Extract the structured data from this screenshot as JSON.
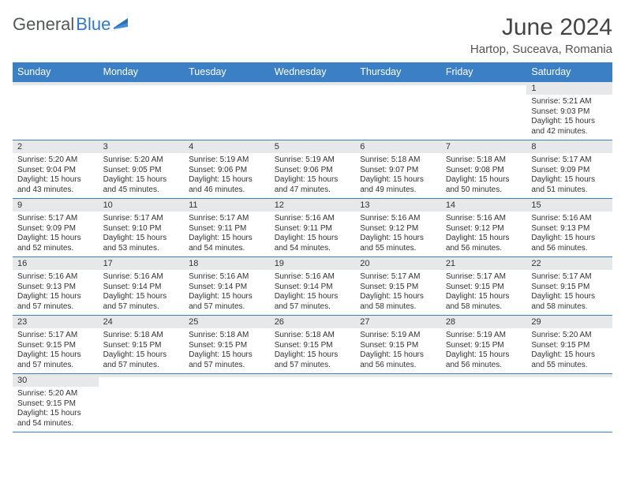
{
  "logo": {
    "part1": "General",
    "part2": "Blue"
  },
  "title": "June 2024",
  "location": "Hartop, Suceava, Romania",
  "colors": {
    "header_bg": "#3b7fc4",
    "header_text": "#ffffff",
    "daynum_bg": "#e7e8e9",
    "border": "#3b7fc4",
    "logo_gray": "#55585a",
    "logo_blue": "#3478c2"
  },
  "weekdays": [
    "Sunday",
    "Monday",
    "Tuesday",
    "Wednesday",
    "Thursday",
    "Friday",
    "Saturday"
  ],
  "weeks": [
    [
      {
        "n": "",
        "sr": "",
        "ss": "",
        "dl": ""
      },
      {
        "n": "",
        "sr": "",
        "ss": "",
        "dl": ""
      },
      {
        "n": "",
        "sr": "",
        "ss": "",
        "dl": ""
      },
      {
        "n": "",
        "sr": "",
        "ss": "",
        "dl": ""
      },
      {
        "n": "",
        "sr": "",
        "ss": "",
        "dl": ""
      },
      {
        "n": "",
        "sr": "",
        "ss": "",
        "dl": ""
      },
      {
        "n": "1",
        "sr": "Sunrise: 5:21 AM",
        "ss": "Sunset: 9:03 PM",
        "dl": "Daylight: 15 hours and 42 minutes."
      }
    ],
    [
      {
        "n": "2",
        "sr": "Sunrise: 5:20 AM",
        "ss": "Sunset: 9:04 PM",
        "dl": "Daylight: 15 hours and 43 minutes."
      },
      {
        "n": "3",
        "sr": "Sunrise: 5:20 AM",
        "ss": "Sunset: 9:05 PM",
        "dl": "Daylight: 15 hours and 45 minutes."
      },
      {
        "n": "4",
        "sr": "Sunrise: 5:19 AM",
        "ss": "Sunset: 9:06 PM",
        "dl": "Daylight: 15 hours and 46 minutes."
      },
      {
        "n": "5",
        "sr": "Sunrise: 5:19 AM",
        "ss": "Sunset: 9:06 PM",
        "dl": "Daylight: 15 hours and 47 minutes."
      },
      {
        "n": "6",
        "sr": "Sunrise: 5:18 AM",
        "ss": "Sunset: 9:07 PM",
        "dl": "Daylight: 15 hours and 49 minutes."
      },
      {
        "n": "7",
        "sr": "Sunrise: 5:18 AM",
        "ss": "Sunset: 9:08 PM",
        "dl": "Daylight: 15 hours and 50 minutes."
      },
      {
        "n": "8",
        "sr": "Sunrise: 5:17 AM",
        "ss": "Sunset: 9:09 PM",
        "dl": "Daylight: 15 hours and 51 minutes."
      }
    ],
    [
      {
        "n": "9",
        "sr": "Sunrise: 5:17 AM",
        "ss": "Sunset: 9:09 PM",
        "dl": "Daylight: 15 hours and 52 minutes."
      },
      {
        "n": "10",
        "sr": "Sunrise: 5:17 AM",
        "ss": "Sunset: 9:10 PM",
        "dl": "Daylight: 15 hours and 53 minutes."
      },
      {
        "n": "11",
        "sr": "Sunrise: 5:17 AM",
        "ss": "Sunset: 9:11 PM",
        "dl": "Daylight: 15 hours and 54 minutes."
      },
      {
        "n": "12",
        "sr": "Sunrise: 5:16 AM",
        "ss": "Sunset: 9:11 PM",
        "dl": "Daylight: 15 hours and 54 minutes."
      },
      {
        "n": "13",
        "sr": "Sunrise: 5:16 AM",
        "ss": "Sunset: 9:12 PM",
        "dl": "Daylight: 15 hours and 55 minutes."
      },
      {
        "n": "14",
        "sr": "Sunrise: 5:16 AM",
        "ss": "Sunset: 9:12 PM",
        "dl": "Daylight: 15 hours and 56 minutes."
      },
      {
        "n": "15",
        "sr": "Sunrise: 5:16 AM",
        "ss": "Sunset: 9:13 PM",
        "dl": "Daylight: 15 hours and 56 minutes."
      }
    ],
    [
      {
        "n": "16",
        "sr": "Sunrise: 5:16 AM",
        "ss": "Sunset: 9:13 PM",
        "dl": "Daylight: 15 hours and 57 minutes."
      },
      {
        "n": "17",
        "sr": "Sunrise: 5:16 AM",
        "ss": "Sunset: 9:14 PM",
        "dl": "Daylight: 15 hours and 57 minutes."
      },
      {
        "n": "18",
        "sr": "Sunrise: 5:16 AM",
        "ss": "Sunset: 9:14 PM",
        "dl": "Daylight: 15 hours and 57 minutes."
      },
      {
        "n": "19",
        "sr": "Sunrise: 5:16 AM",
        "ss": "Sunset: 9:14 PM",
        "dl": "Daylight: 15 hours and 57 minutes."
      },
      {
        "n": "20",
        "sr": "Sunrise: 5:17 AM",
        "ss": "Sunset: 9:15 PM",
        "dl": "Daylight: 15 hours and 58 minutes."
      },
      {
        "n": "21",
        "sr": "Sunrise: 5:17 AM",
        "ss": "Sunset: 9:15 PM",
        "dl": "Daylight: 15 hours and 58 minutes."
      },
      {
        "n": "22",
        "sr": "Sunrise: 5:17 AM",
        "ss": "Sunset: 9:15 PM",
        "dl": "Daylight: 15 hours and 58 minutes."
      }
    ],
    [
      {
        "n": "23",
        "sr": "Sunrise: 5:17 AM",
        "ss": "Sunset: 9:15 PM",
        "dl": "Daylight: 15 hours and 57 minutes."
      },
      {
        "n": "24",
        "sr": "Sunrise: 5:18 AM",
        "ss": "Sunset: 9:15 PM",
        "dl": "Daylight: 15 hours and 57 minutes."
      },
      {
        "n": "25",
        "sr": "Sunrise: 5:18 AM",
        "ss": "Sunset: 9:15 PM",
        "dl": "Daylight: 15 hours and 57 minutes."
      },
      {
        "n": "26",
        "sr": "Sunrise: 5:18 AM",
        "ss": "Sunset: 9:15 PM",
        "dl": "Daylight: 15 hours and 57 minutes."
      },
      {
        "n": "27",
        "sr": "Sunrise: 5:19 AM",
        "ss": "Sunset: 9:15 PM",
        "dl": "Daylight: 15 hours and 56 minutes."
      },
      {
        "n": "28",
        "sr": "Sunrise: 5:19 AM",
        "ss": "Sunset: 9:15 PM",
        "dl": "Daylight: 15 hours and 56 minutes."
      },
      {
        "n": "29",
        "sr": "Sunrise: 5:20 AM",
        "ss": "Sunset: 9:15 PM",
        "dl": "Daylight: 15 hours and 55 minutes."
      }
    ],
    [
      {
        "n": "30",
        "sr": "Sunrise: 5:20 AM",
        "ss": "Sunset: 9:15 PM",
        "dl": "Daylight: 15 hours and 54 minutes."
      },
      {
        "n": "",
        "sr": "",
        "ss": "",
        "dl": ""
      },
      {
        "n": "",
        "sr": "",
        "ss": "",
        "dl": ""
      },
      {
        "n": "",
        "sr": "",
        "ss": "",
        "dl": ""
      },
      {
        "n": "",
        "sr": "",
        "ss": "",
        "dl": ""
      },
      {
        "n": "",
        "sr": "",
        "ss": "",
        "dl": ""
      },
      {
        "n": "",
        "sr": "",
        "ss": "",
        "dl": ""
      }
    ]
  ]
}
